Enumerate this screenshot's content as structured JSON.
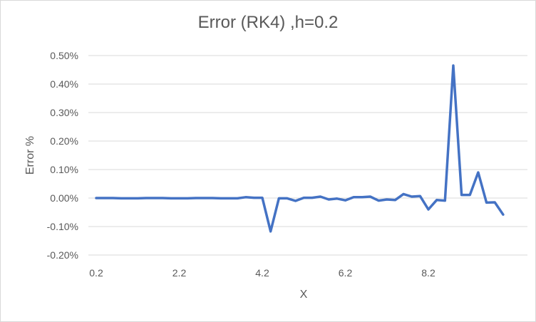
{
  "chart_data": {
    "type": "line",
    "title": "Error (RK4) ,h=0.2",
    "xlabel": "X",
    "ylabel": "Error %",
    "ylim": [
      -0.2,
      0.5
    ],
    "yticks": [
      "-0.20%",
      "-0.10%",
      "0.00%",
      "0.10%",
      "0.20%",
      "0.30%",
      "0.40%",
      "0.50%"
    ],
    "xtick_labels": [
      "0.2",
      "2.2",
      "4.2",
      "6.2",
      "8.2"
    ],
    "grid": "horizontal",
    "legend": "none",
    "line_color": "#4472c4",
    "x": [
      0.2,
      0.4,
      0.6,
      0.8,
      1.0,
      1.2,
      1.4,
      1.6,
      1.8,
      2.0,
      2.2,
      2.4,
      2.6,
      2.8,
      3.0,
      3.2,
      3.4,
      3.6,
      3.8,
      4.0,
      4.2,
      4.4,
      4.6,
      4.8,
      5.0,
      5.2,
      5.4,
      5.6,
      5.8,
      6.0,
      6.2,
      6.4,
      6.6,
      6.8,
      7.0,
      7.2,
      7.4,
      7.6,
      7.8,
      8.0,
      8.2,
      8.4,
      8.6,
      8.8,
      9.0,
      9.2,
      9.4,
      9.6,
      9.8,
      10.0
    ],
    "series": [
      {
        "values": [
          0.0,
          0.0,
          0.0,
          -0.001,
          -0.001,
          -0.001,
          0.0,
          0.0,
          0.0,
          -0.001,
          -0.001,
          -0.001,
          0.0,
          0.0,
          0.0,
          -0.001,
          -0.001,
          -0.001,
          0.003,
          0.001,
          0.001,
          -0.117,
          -0.001,
          -0.001,
          -0.01,
          0.001,
          0.001,
          0.005,
          -0.005,
          -0.002,
          -0.008,
          0.003,
          0.003,
          0.005,
          -0.009,
          -0.005,
          -0.007,
          0.014,
          0.005,
          0.007,
          -0.04,
          -0.007,
          -0.009,
          0.465,
          0.011,
          0.011,
          0.09,
          -0.016,
          -0.015,
          -0.058
        ]
      }
    ]
  }
}
